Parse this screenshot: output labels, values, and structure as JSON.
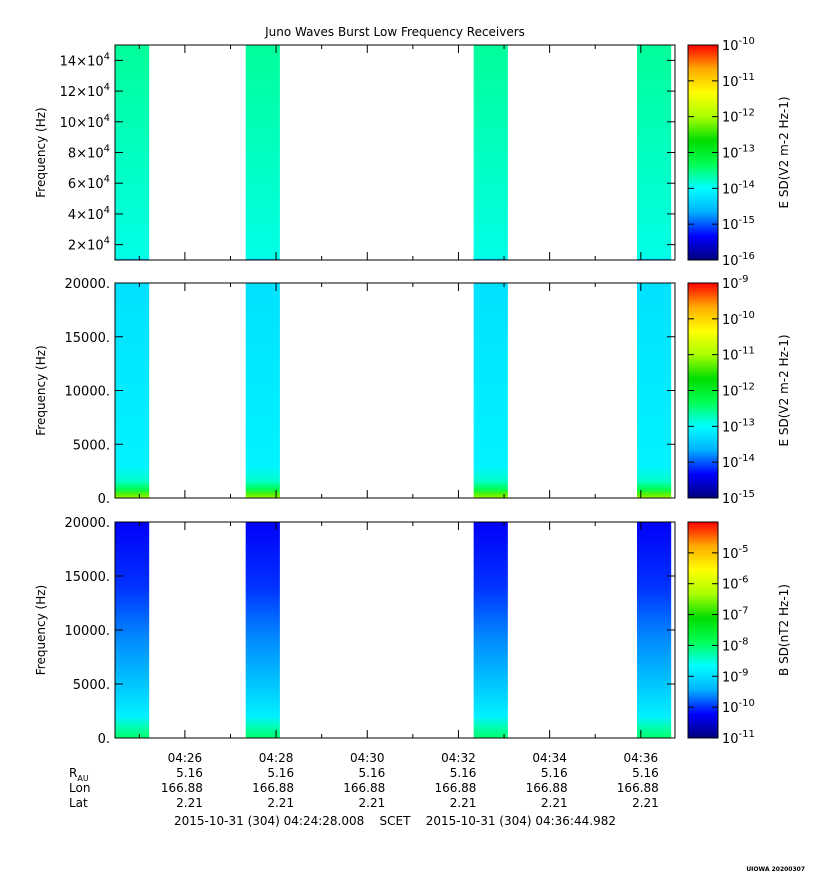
{
  "title": "Juno Waves Burst Low Frequency Receivers",
  "footer": {
    "start": "2015-10-31 (304) 04:24:28.008",
    "frame": "SCET",
    "end": "2015-10-31 (304) 04:36:44.982"
  },
  "stamp": "UIOWA 20200307",
  "ephemeris": {
    "row_labels": [
      "R",
      "Lon",
      "Lat"
    ],
    "r_subscript": "AU",
    "columns": [
      {
        "r": "5.16",
        "lon": "166.88",
        "lat": "2.21"
      },
      {
        "r": "5.16",
        "lon": "166.88",
        "lat": "2.21"
      },
      {
        "r": "5.16",
        "lon": "166.88",
        "lat": "2.21"
      },
      {
        "r": "5.16",
        "lon": "166.88",
        "lat": "2.21"
      },
      {
        "r": "5.16",
        "lon": "166.88",
        "lat": "2.21"
      },
      {
        "r": "5.16",
        "lon": "166.88",
        "lat": "2.21"
      }
    ]
  },
  "colors": {
    "colormap": [
      "#00007f",
      "#0000ff",
      "#00b0ff",
      "#00ffff",
      "#00ff55",
      "#00dd00",
      "#aaff00",
      "#ffff00",
      "#ffaa00",
      "#ff0000"
    ]
  },
  "chart_data": [
    {
      "type": "heatmap",
      "title": "Juno Waves Burst Low Frequency Receivers",
      "ylabel": "Frequency (Hz)",
      "colorbar_label": "E SD(V2 m-2 Hz-1)",
      "colorbar_scale": "log",
      "colorbar_range": [
        "1e-16",
        "1e-10"
      ],
      "colorbar_ticks": [
        -16,
        -15,
        -14,
        -13,
        -12,
        -11,
        -10
      ],
      "ylim": [
        10000,
        150000
      ],
      "yticks": [
        {
          "value": 20000,
          "mant": "2×10",
          "exp": "4"
        },
        {
          "value": 40000,
          "mant": "4×10",
          "exp": "4"
        },
        {
          "value": 60000,
          "mant": "6×10",
          "exp": "4"
        },
        {
          "value": 80000,
          "mant": "8×10",
          "exp": "4"
        },
        {
          "value": 100000,
          "mant": "10×10",
          "exp": "4"
        },
        {
          "value": 120000,
          "mant": "12×10",
          "exp": "4"
        },
        {
          "value": 140000,
          "mant": "14×10",
          "exp": "4"
        }
      ],
      "bursts": [
        {
          "start": "04:24:28",
          "end": "04:25:13"
        },
        {
          "start": "04:27:20",
          "end": "04:28:05"
        },
        {
          "start": "04:32:20",
          "end": "04:33:05"
        },
        {
          "start": "04:35:55",
          "end": "04:36:40"
        }
      ],
      "intensity_profile": [
        {
          "freq": 10000,
          "log_value": -14.9
        },
        {
          "freq": 11000,
          "log_value": -13.9
        },
        {
          "freq": 150000,
          "log_value": -13.6
        }
      ]
    },
    {
      "type": "heatmap",
      "ylabel": "Frequency (Hz)",
      "colorbar_label": "E SD(V2 m-2 Hz-1)",
      "colorbar_scale": "log",
      "colorbar_range": [
        "1e-15",
        "1e-9"
      ],
      "colorbar_ticks": [
        -15,
        -14,
        -13,
        -12,
        -11,
        -10,
        -9
      ],
      "ylim": [
        0,
        20000
      ],
      "yticks": [
        {
          "value": 0,
          "label": "0."
        },
        {
          "value": 5000,
          "label": "5000."
        },
        {
          "value": 10000,
          "label": "10000."
        },
        {
          "value": 15000,
          "label": "15000."
        },
        {
          "value": 20000,
          "label": "20000."
        }
      ],
      "bursts": [
        {
          "start": "04:24:28",
          "end": "04:25:13"
        },
        {
          "start": "04:27:20",
          "end": "04:28:05"
        },
        {
          "start": "04:32:20",
          "end": "04:33:05"
        },
        {
          "start": "04:35:55",
          "end": "04:36:40"
        }
      ],
      "intensity_profile": [
        {
          "freq": 0,
          "log_value": -11.0
        },
        {
          "freq": 300,
          "log_value": -11.3
        },
        {
          "freq": 800,
          "log_value": -12.3
        },
        {
          "freq": 1600,
          "log_value": -12.8
        },
        {
          "freq": 3000,
          "log_value": -13.1
        },
        {
          "freq": 20000,
          "log_value": -13.25
        }
      ]
    },
    {
      "type": "heatmap",
      "ylabel": "Frequency (Hz)",
      "colorbar_label": "B SD(nT2 Hz-1)",
      "colorbar_scale": "log",
      "colorbar_range": [
        "1e-11",
        "1e-4"
      ],
      "colorbar_ticks": [
        -11,
        -10,
        -9,
        -8,
        -7,
        -6,
        -5
      ],
      "ylim": [
        0,
        20000
      ],
      "xlim": [
        "04:24:28",
        "04:36:45"
      ],
      "xticks": [
        "04:26",
        "04:28",
        "04:30",
        "04:32",
        "04:34",
        "04:36"
      ],
      "yticks": [
        {
          "value": 0,
          "label": "0."
        },
        {
          "value": 5000,
          "label": "5000."
        },
        {
          "value": 10000,
          "label": "10000."
        },
        {
          "value": 15000,
          "label": "15000."
        },
        {
          "value": 20000,
          "label": "20000."
        }
      ],
      "bursts": [
        {
          "start": "04:24:28",
          "end": "04:25:13"
        },
        {
          "start": "04:27:20",
          "end": "04:28:05"
        },
        {
          "start": "04:32:20",
          "end": "04:33:05"
        },
        {
          "start": "04:35:55",
          "end": "04:36:40"
        }
      ],
      "intensity_profile": [
        {
          "freq": 0,
          "log_value": -8.0
        },
        {
          "freq": 1000,
          "log_value": -8.3
        },
        {
          "freq": 2000,
          "log_value": -8.8
        },
        {
          "freq": 4000,
          "log_value": -9.1
        },
        {
          "freq": 9000,
          "log_value": -9.6
        },
        {
          "freq": 14000,
          "log_value": -10.0
        },
        {
          "freq": 20000,
          "log_value": -10.25
        }
      ]
    }
  ]
}
